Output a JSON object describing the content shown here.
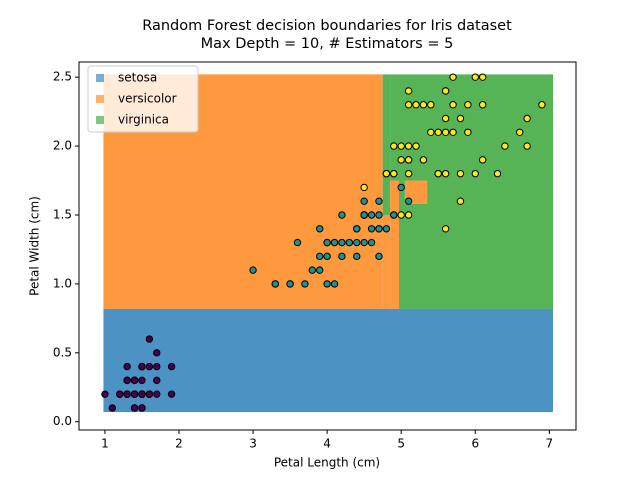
{
  "chart_data": {
    "type": "scatter",
    "title": "Random Forest decision boundaries for Iris dataset",
    "subtitle": "Max Depth = 10, # Estimators = 5",
    "x_label": "Petal Length (cm)",
    "y_label": "Petal Width (cm)",
    "xlim": [
      0.65,
      7.36
    ],
    "ylim": [
      -0.06,
      2.61
    ],
    "xticks": [
      1,
      2,
      3,
      4,
      5,
      6,
      7
    ],
    "yticks": [
      {
        "value": 0,
        "label": "0.0"
      },
      {
        "value": 0.5,
        "label": "0.5"
      },
      {
        "value": 1,
        "label": "1.0"
      },
      {
        "value": 1.5,
        "label": "1.5"
      },
      {
        "value": 2,
        "label": "2.0"
      },
      {
        "value": 2.5,
        "label": "2.5"
      }
    ],
    "legend": "upper left",
    "series": [
      {
        "name": "setosa",
        "color": "#1f77b4",
        "point_color": "#440154",
        "regions": [
          {
            "x": [
              0.98,
              7.05
            ],
            "y": [
              0.07,
              0.82
            ]
          }
        ],
        "x": [
          1.4,
          1.4,
          1.3,
          1.5,
          1.4,
          1.7,
          1.4,
          1.5,
          1.4,
          1.5,
          1.5,
          1.6,
          1.4,
          1.1,
          1.2,
          1.5,
          1.3,
          1.4,
          1.7,
          1.5,
          1.7,
          1.5,
          1.0,
          1.7,
          1.9,
          1.6,
          1.6,
          1.5,
          1.4,
          1.6,
          1.6,
          1.5,
          1.5,
          1.4,
          1.5,
          1.2,
          1.3,
          1.4,
          1.3,
          1.5,
          1.3,
          1.3,
          1.3,
          1.6,
          1.9,
          1.4,
          1.6,
          1.4,
          1.5,
          1.4
        ],
        "y": [
          0.2,
          0.2,
          0.2,
          0.2,
          0.2,
          0.4,
          0.3,
          0.2,
          0.2,
          0.1,
          0.2,
          0.2,
          0.1,
          0.1,
          0.2,
          0.4,
          0.4,
          0.3,
          0.3,
          0.3,
          0.2,
          0.4,
          0.2,
          0.5,
          0.2,
          0.2,
          0.4,
          0.2,
          0.2,
          0.2,
          0.2,
          0.4,
          0.1,
          0.2,
          0.2,
          0.2,
          0.2,
          0.1,
          0.2,
          0.2,
          0.3,
          0.3,
          0.2,
          0.6,
          0.4,
          0.3,
          0.2,
          0.2,
          0.2,
          0.2
        ]
      },
      {
        "name": "versicolor",
        "color": "#ff7f0e",
        "point_color": "#21918c",
        "regions": [
          {
            "x": [
              0.98,
              4.75
            ],
            "y": [
              0.82,
              2.52
            ]
          },
          {
            "x": [
              4.75,
              4.85
            ],
            "y": [
              0.82,
              1.5
            ]
          },
          {
            "x": [
              4.85,
              4.97
            ],
            "y": [
              0.82,
              1.75
            ]
          },
          {
            "x": [
              5.05,
              5.35
            ],
            "y": [
              1.58,
              1.75
            ]
          }
        ],
        "x": [
          4.7,
          4.5,
          4.9,
          4.0,
          4.6,
          4.5,
          4.7,
          3.3,
          4.6,
          3.9,
          3.5,
          4.2,
          4.0,
          4.7,
          3.6,
          4.4,
          4.5,
          4.1,
          4.5,
          3.9,
          4.8,
          4.0,
          4.9,
          4.7,
          4.3,
          4.4,
          4.8,
          5.0,
          4.5,
          3.5,
          3.8,
          3.7,
          3.9,
          5.1,
          4.5,
          4.5,
          4.7,
          4.4,
          4.1,
          4.0,
          4.4,
          4.6,
          4.0,
          3.3,
          4.2,
          4.2,
          4.2,
          4.3,
          3.0,
          4.1
        ],
        "y": [
          1.4,
          1.5,
          1.5,
          1.3,
          1.5,
          1.3,
          1.6,
          1.0,
          1.3,
          1.4,
          1.0,
          1.5,
          1.0,
          1.4,
          1.3,
          1.4,
          1.5,
          1.0,
          1.5,
          1.1,
          1.8,
          1.3,
          1.5,
          1.2,
          1.3,
          1.4,
          1.4,
          1.7,
          1.5,
          1.0,
          1.1,
          1.0,
          1.2,
          1.6,
          1.5,
          1.6,
          1.5,
          1.3,
          1.3,
          1.3,
          1.2,
          1.4,
          1.2,
          1.0,
          1.3,
          1.2,
          1.3,
          1.3,
          1.1,
          1.3
        ]
      },
      {
        "name": "virginica",
        "color": "#2ca02c",
        "point_color": "#fde725",
        "regions": [
          {
            "x": [
              4.75,
              4.85
            ],
            "y": [
              1.5,
              2.52
            ]
          },
          {
            "x": [
              4.85,
              4.97
            ],
            "y": [
              1.75,
              2.52
            ]
          },
          {
            "x": [
              4.97,
              7.05
            ],
            "y": [
              0.82,
              1.58
            ]
          },
          {
            "x": [
              4.97,
              7.05
            ],
            "y": [
              1.75,
              2.52
            ]
          },
          {
            "x": [
              4.97,
              5.05
            ],
            "y": [
              1.58,
              1.75
            ]
          },
          {
            "x": [
              5.35,
              7.05
            ],
            "y": [
              1.58,
              1.75
            ]
          }
        ],
        "x": [
          6.0,
          5.1,
          5.9,
          5.6,
          5.8,
          6.6,
          4.5,
          6.3,
          5.8,
          6.1,
          5.1,
          5.3,
          5.5,
          5.0,
          5.1,
          5.3,
          5.5,
          6.7,
          6.9,
          5.0,
          5.7,
          4.9,
          6.7,
          4.9,
          5.7,
          6.0,
          4.8,
          4.9,
          5.6,
          5.8,
          6.1,
          6.4,
          5.6,
          5.1,
          5.6,
          6.1,
          5.6,
          5.5,
          4.8,
          5.4,
          5.6,
          5.1,
          5.1,
          5.9,
          5.7,
          5.2,
          5.0,
          5.2,
          5.4,
          5.1
        ],
        "y": [
          2.5,
          1.9,
          2.1,
          1.8,
          2.2,
          2.1,
          1.7,
          1.8,
          1.8,
          2.5,
          2.0,
          1.9,
          2.1,
          2.0,
          2.4,
          2.3,
          1.8,
          2.2,
          2.3,
          1.5,
          2.3,
          2.0,
          2.0,
          1.8,
          2.1,
          1.8,
          1.8,
          1.8,
          2.1,
          1.6,
          1.9,
          2.0,
          2.2,
          1.5,
          1.4,
          2.3,
          2.4,
          1.8,
          1.8,
          2.1,
          2.4,
          2.3,
          1.9,
          2.3,
          2.5,
          2.3,
          1.9,
          2.0,
          2.3,
          1.8
        ]
      }
    ]
  }
}
